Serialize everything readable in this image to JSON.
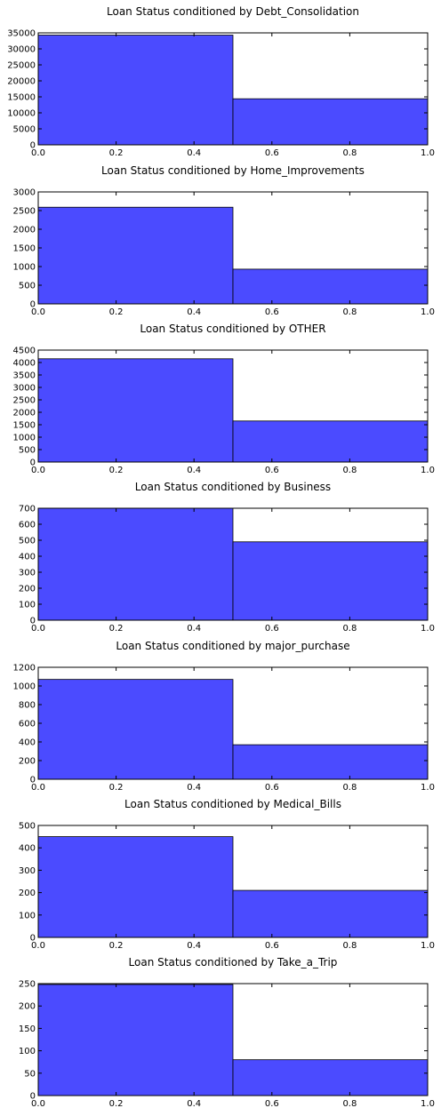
{
  "chart_data": [
    {
      "type": "bar",
      "title": "Loan Status conditioned by Debt_Consolidation",
      "x": [
        0.0,
        0.5
      ],
      "bin_edges": [
        0.0,
        0.5,
        1.0
      ],
      "values": [
        34300,
        14400
      ],
      "xlim": [
        0,
        1
      ],
      "ylim": [
        0,
        35000
      ],
      "xticks": [
        "0.0",
        "0.2",
        "0.4",
        "0.6",
        "0.8",
        "1.0"
      ],
      "yticks": [
        "0",
        "5000",
        "10000",
        "15000",
        "20000",
        "25000",
        "30000",
        "35000"
      ],
      "bar_color": "#4b4bff",
      "grid": false
    },
    {
      "type": "bar",
      "title": "Loan Status conditioned by Home_Improvements",
      "x": [
        0.0,
        0.5
      ],
      "bin_edges": [
        0.0,
        0.5,
        1.0
      ],
      "values": [
        2590,
        930
      ],
      "xlim": [
        0,
        1
      ],
      "ylim": [
        0,
        3000
      ],
      "xticks": [
        "0.0",
        "0.2",
        "0.4",
        "0.6",
        "0.8",
        "1.0"
      ],
      "yticks": [
        "0",
        "500",
        "1000",
        "1500",
        "2000",
        "2500",
        "3000"
      ],
      "bar_color": "#4b4bff",
      "grid": false
    },
    {
      "type": "bar",
      "title": "Loan Status conditioned by OTHER",
      "x": [
        0.0,
        0.5
      ],
      "bin_edges": [
        0.0,
        0.5,
        1.0
      ],
      "values": [
        4150,
        1650
      ],
      "xlim": [
        0,
        1
      ],
      "ylim": [
        0,
        4500
      ],
      "xticks": [
        "0.0",
        "0.2",
        "0.4",
        "0.6",
        "0.8",
        "1.0"
      ],
      "yticks": [
        "0",
        "500",
        "1000",
        "1500",
        "2000",
        "2500",
        "3000",
        "3500",
        "4000",
        "4500"
      ],
      "bar_color": "#4b4bff",
      "grid": false
    },
    {
      "type": "bar",
      "title": "Loan Status conditioned by Business",
      "x": [
        0.0,
        0.5
      ],
      "bin_edges": [
        0.0,
        0.5,
        1.0
      ],
      "values": [
        700,
        490
      ],
      "xlim": [
        0,
        1
      ],
      "ylim": [
        0,
        700
      ],
      "xticks": [
        "0.0",
        "0.2",
        "0.4",
        "0.6",
        "0.8",
        "1.0"
      ],
      "yticks": [
        "0",
        "100",
        "200",
        "300",
        "400",
        "500",
        "600",
        "700"
      ],
      "bar_color": "#4b4bff",
      "grid": false
    },
    {
      "type": "bar",
      "title": "Loan Status conditioned by major_purchase",
      "x": [
        0.0,
        0.5
      ],
      "bin_edges": [
        0.0,
        0.5,
        1.0
      ],
      "values": [
        1070,
        370
      ],
      "xlim": [
        0,
        1
      ],
      "ylim": [
        0,
        1200
      ],
      "xticks": [
        "0.0",
        "0.2",
        "0.4",
        "0.6",
        "0.8",
        "1.0"
      ],
      "yticks": [
        "0",
        "200",
        "400",
        "600",
        "800",
        "1000",
        "1200"
      ],
      "bar_color": "#4b4bff",
      "grid": false
    },
    {
      "type": "bar",
      "title": "Loan Status conditioned by Medical_Bills",
      "x": [
        0.0,
        0.5
      ],
      "bin_edges": [
        0.0,
        0.5,
        1.0
      ],
      "values": [
        450,
        210
      ],
      "xlim": [
        0,
        1
      ],
      "ylim": [
        0,
        500
      ],
      "xticks": [
        "0.0",
        "0.2",
        "0.4",
        "0.6",
        "0.8",
        "1.0"
      ],
      "yticks": [
        "0",
        "100",
        "200",
        "300",
        "400",
        "500"
      ],
      "bar_color": "#4b4bff",
      "grid": false
    },
    {
      "type": "bar",
      "title": "Loan Status conditioned by Take_a_Trip",
      "x": [
        0.0,
        0.5
      ],
      "bin_edges": [
        0.0,
        0.5,
        1.0
      ],
      "values": [
        248,
        80
      ],
      "xlim": [
        0,
        1
      ],
      "ylim": [
        0,
        250
      ],
      "xticks": [
        "0.0",
        "0.2",
        "0.4",
        "0.6",
        "0.8",
        "1.0"
      ],
      "yticks": [
        "0",
        "50",
        "100",
        "150",
        "200",
        "250"
      ],
      "bar_color": "#4b4bff",
      "grid": false
    }
  ]
}
